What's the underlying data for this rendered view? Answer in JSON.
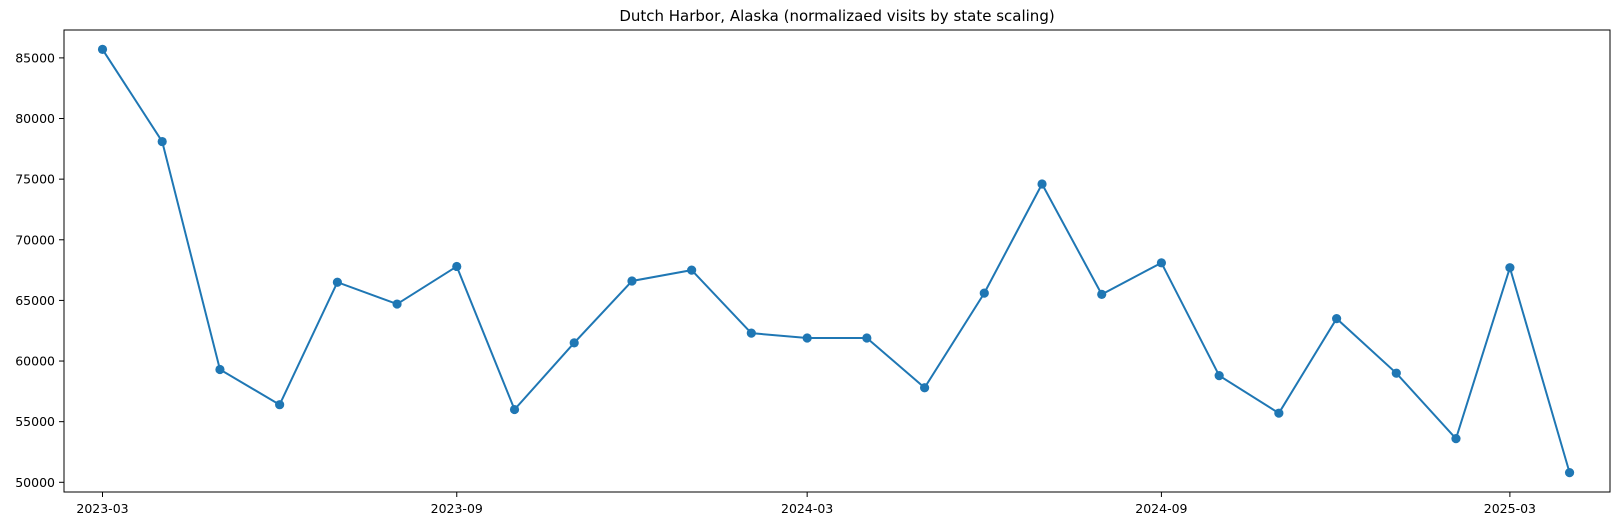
{
  "chart_data": {
    "type": "line",
    "title": "Dutch Harbor, Alaska (normalizaed visits by state scaling)",
    "xlabel": "",
    "ylabel": "",
    "x_ticks": [
      "2023-03",
      "2023-09",
      "2024-03",
      "2024-09",
      "2025-03"
    ],
    "y_ticks": [
      "50000",
      "55000",
      "60000",
      "65000",
      "70000",
      "75000",
      "80000",
      "85000"
    ],
    "ylim": [
      49200,
      87300
    ],
    "xlim": [
      "2023-02-09",
      "2025-04-22"
    ],
    "grid": false,
    "legend": "none",
    "colors": {
      "line": "#1f77b4",
      "marker": "#1f77b4"
    },
    "series": [
      {
        "x": [
          "2023-03-01",
          "2023-04-01",
          "2023-05-01",
          "2023-06-01",
          "2023-07-01",
          "2023-08-01",
          "2023-09-01",
          "2023-10-01",
          "2023-11-01",
          "2023-12-01",
          "2024-01-01",
          "2024-02-01",
          "2024-03-01",
          "2024-04-01",
          "2024-05-01",
          "2024-06-01",
          "2024-07-01",
          "2024-08-01",
          "2024-09-01",
          "2024-10-01",
          "2024-11-01",
          "2024-12-01",
          "2025-01-01",
          "2025-02-01",
          "2025-03-01",
          "2025-04-01"
        ],
        "values": [
          85700,
          78100,
          59300,
          56400,
          66500,
          64700,
          67800,
          56000,
          61500,
          66600,
          67500,
          62300,
          61900,
          61900,
          57800,
          65600,
          74600,
          65500,
          68100,
          58800,
          55700,
          63500,
          59000,
          53600,
          67700,
          50800
        ]
      }
    ]
  }
}
